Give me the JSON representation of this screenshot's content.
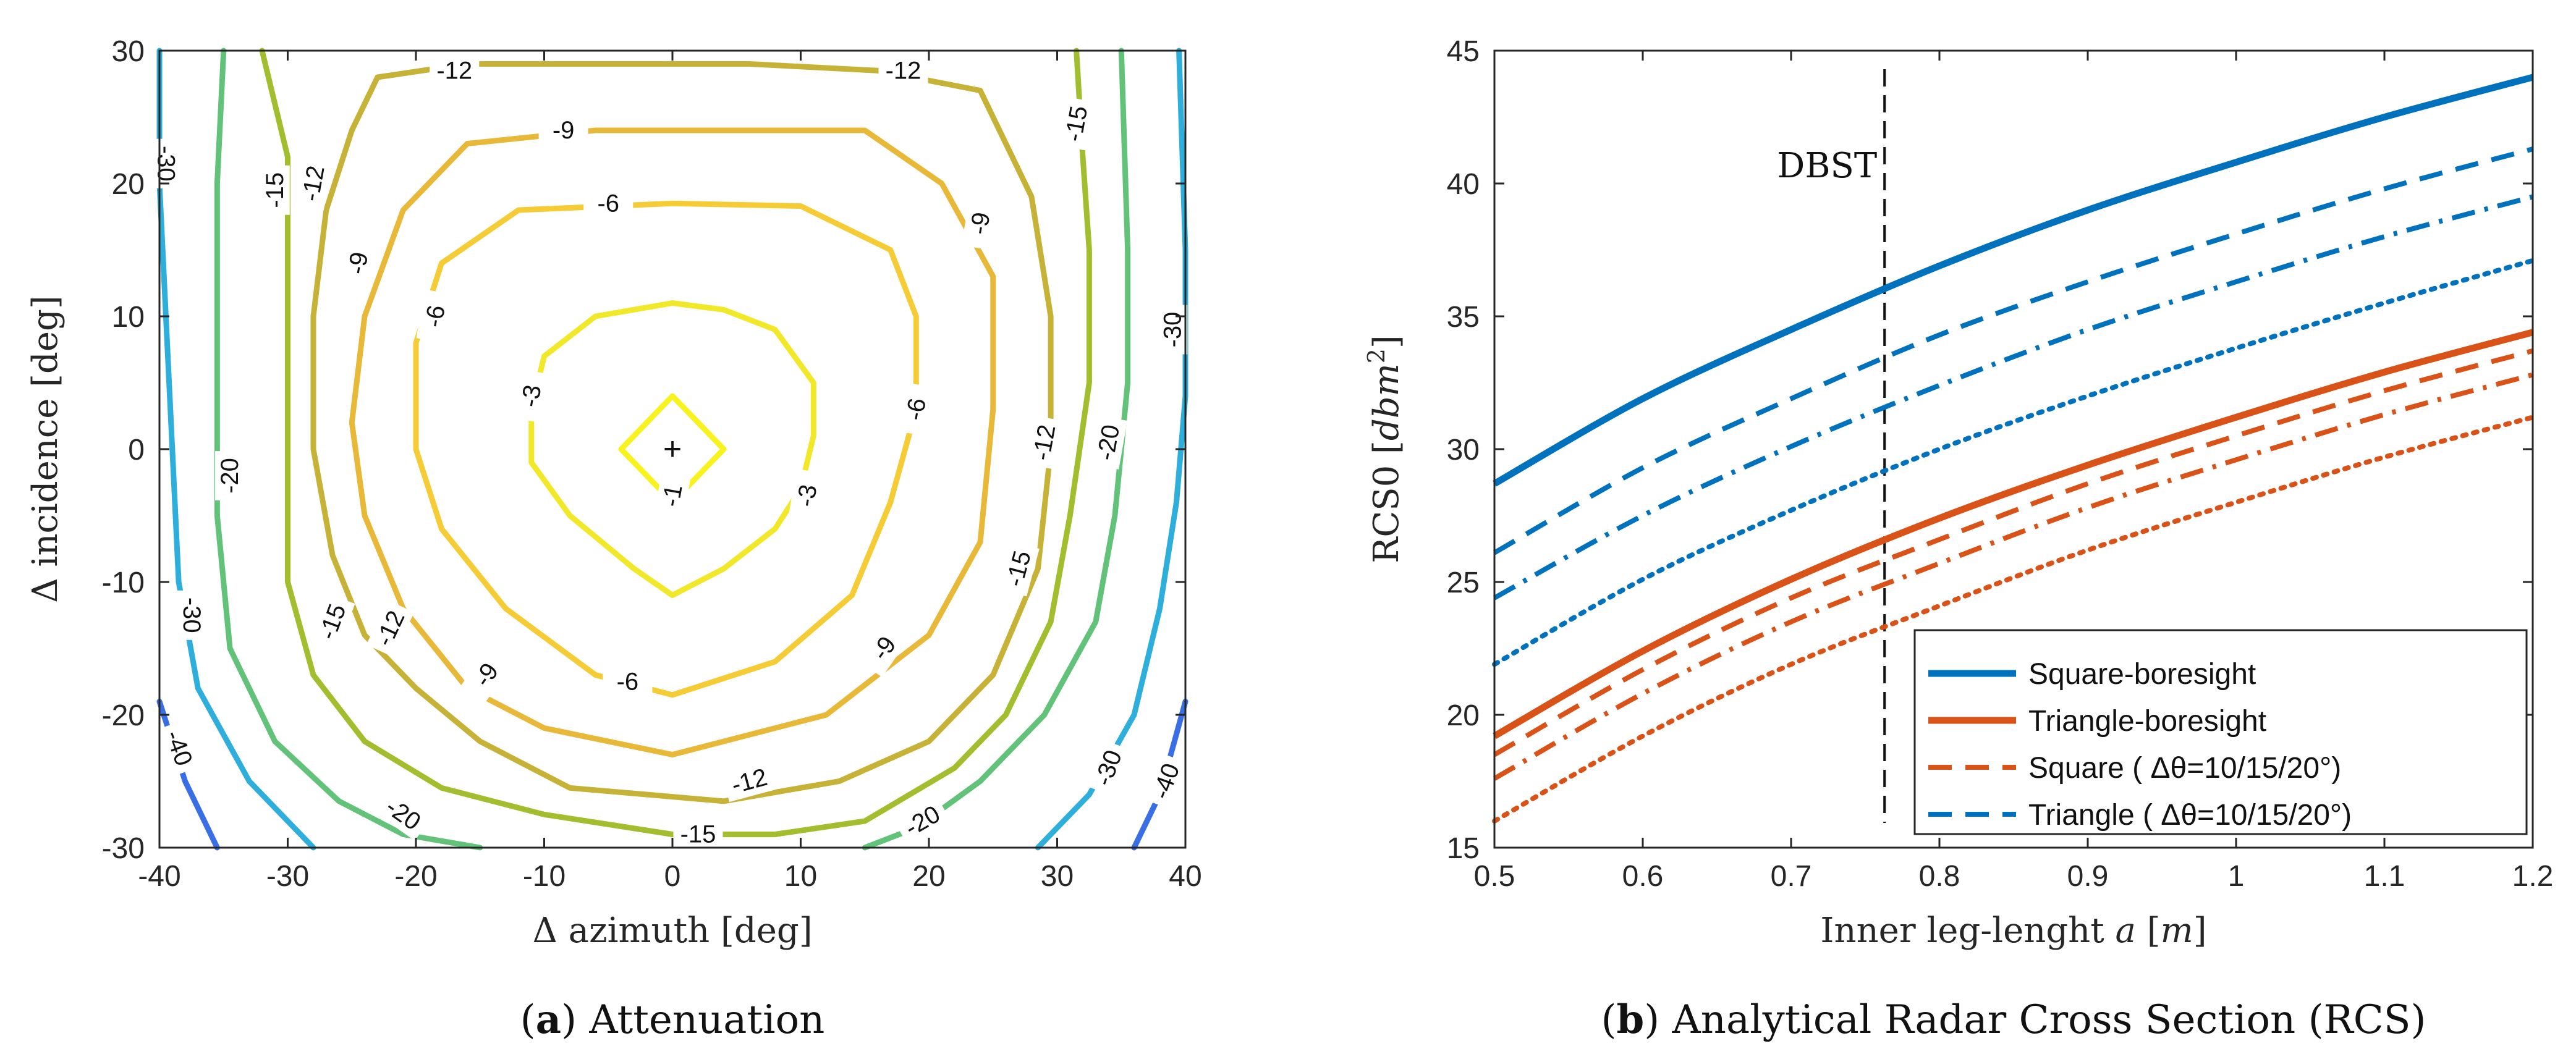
{
  "chart_data": [
    {
      "type": "contour",
      "caption_letter": "a",
      "caption_text": " Attenuation",
      "xlabel": "Δ azimuth [deg]",
      "ylabel": "Δ incidence [deg]",
      "xlim": [
        -40,
        40
      ],
      "ylim": [
        -30,
        30
      ],
      "xticks": [
        -40,
        -30,
        -20,
        -10,
        0,
        10,
        20,
        30,
        40
      ],
      "yticks": [
        -30,
        -20,
        -10,
        0,
        10,
        20,
        30
      ],
      "center_marker": "+",
      "levels": [
        {
          "level": -1,
          "color": "#f8f21e",
          "points": [
            [
              -4,
              0
            ],
            [
              0,
              4
            ],
            [
              4,
              0
            ],
            [
              0,
              -4
            ],
            [
              -4,
              0
            ]
          ]
        },
        {
          "level": -3,
          "color": "#f2e82a",
          "points": [
            [
              0,
              11
            ],
            [
              -6,
              10
            ],
            [
              -10,
              7
            ],
            [
              -11,
              3
            ],
            [
              -11,
              -1
            ],
            [
              -8,
              -5
            ],
            [
              -3,
              -9
            ],
            [
              0,
              -11
            ],
            [
              4,
              -9
            ],
            [
              8,
              -6
            ],
            [
              10,
              -3
            ],
            [
              11,
              1
            ],
            [
              11,
              5
            ],
            [
              8,
              9
            ],
            [
              4,
              10.5
            ],
            [
              0,
              11
            ]
          ]
        },
        {
          "level": -6,
          "color": "#f5cc35",
          "points": [
            [
              0,
              18.5
            ],
            [
              -12,
              18
            ],
            [
              -18,
              14
            ],
            [
              -20,
              8
            ],
            [
              -20,
              0
            ],
            [
              -18,
              -6
            ],
            [
              -13,
              -12
            ],
            [
              -6,
              -17
            ],
            [
              0,
              -18.5
            ],
            [
              8,
              -16
            ],
            [
              14,
              -11
            ],
            [
              17,
              -4
            ],
            [
              19,
              3
            ],
            [
              19,
              10
            ],
            [
              17,
              15
            ],
            [
              10,
              18.3
            ],
            [
              0,
              18.5
            ]
          ]
        },
        {
          "level": -9,
          "color": "#e8b838",
          "points": [
            [
              -21,
              18
            ],
            [
              -16,
              23
            ],
            [
              -6,
              24
            ],
            [
              6,
              24
            ],
            [
              15,
              24
            ],
            [
              21,
              20
            ],
            [
              25,
              13
            ],
            [
              25,
              3
            ],
            [
              24,
              -7
            ],
            [
              20,
              -14
            ],
            [
              12,
              -20
            ],
            [
              0,
              -23
            ],
            [
              -10,
              -21
            ],
            [
              -16,
              -18
            ],
            [
              -21,
              -12
            ],
            [
              -24,
              -5
            ],
            [
              -25,
              2
            ],
            [
              -24,
              10
            ],
            [
              -21,
              18
            ]
          ]
        },
        {
          "level": -12,
          "color": "#c6b237",
          "points": [
            [
              -23,
              28
            ],
            [
              -16,
              29
            ],
            [
              -4,
              29
            ],
            [
              6,
              29
            ],
            [
              16,
              28.5
            ],
            [
              24,
              27
            ],
            [
              28,
              19
            ],
            [
              29.5,
              10
            ],
            [
              29.5,
              0
            ],
            [
              28.5,
              -9
            ],
            [
              25,
              -17
            ],
            [
              20,
              -22
            ],
            [
              13,
              -25
            ],
            [
              4,
              -26.5
            ],
            [
              -8,
              -25.5
            ],
            [
              -15,
              -22
            ],
            [
              -20,
              -18
            ],
            [
              -24,
              -14
            ],
            [
              -26.5,
              -8
            ],
            [
              -28,
              0
            ],
            [
              -28,
              10
            ],
            [
              -27,
              18
            ],
            [
              -25,
              24
            ],
            [
              -23,
              28
            ]
          ]
        },
        {
          "level": -15,
          "color": "#a2be2e",
          "points": [
            [
              -32,
              30
            ],
            [
              -30,
              22
            ],
            [
              -30,
              12
            ],
            [
              -30,
              0
            ],
            [
              -30,
              -10
            ],
            [
              -28,
              -17
            ],
            [
              -24,
              -22
            ],
            [
              -18,
              -25.5
            ],
            [
              -10,
              -27.5
            ],
            [
              0,
              -29
            ],
            [
              8,
              -29
            ],
            [
              15,
              -28
            ],
            [
              22,
              -24
            ],
            [
              26,
              -20
            ],
            [
              29.5,
              -13
            ],
            [
              31,
              -5
            ],
            [
              32.5,
              5
            ],
            [
              32.5,
              15
            ],
            [
              32,
              22
            ],
            [
              31.5,
              30
            ]
          ]
        },
        {
          "level": -20,
          "color": "#63c27a",
          "points": [
            [
              -35,
              30
            ],
            [
              -35.5,
              20
            ],
            [
              -35.5,
              8
            ],
            [
              -35.5,
              -5
            ],
            [
              -34.5,
              -15
            ],
            [
              -31,
              -22
            ],
            [
              -26,
              -26.5
            ],
            [
              -21,
              -29
            ],
            [
              -15,
              -30
            ]
          ]
        },
        {
          "level": -20,
          "color": "#63c27a",
          "points": [
            [
              15,
              -30
            ],
            [
              19,
              -28.5
            ],
            [
              24,
              -25
            ],
            [
              29,
              -20
            ],
            [
              33,
              -13
            ],
            [
              34.5,
              -5
            ],
            [
              35.5,
              5
            ],
            [
              35.5,
              15
            ],
            [
              35,
              30
            ]
          ]
        },
        {
          "level": -30,
          "color": "#2eaeda",
          "points": [
            [
              -40,
              30
            ],
            [
              -40,
              20
            ],
            [
              -39.5,
              10
            ],
            [
              -39,
              0
            ],
            [
              -38.5,
              -10
            ],
            [
              -37,
              -18
            ],
            [
              -33,
              -25
            ],
            [
              -28,
              -30
            ]
          ]
        },
        {
          "level": -30,
          "color": "#2eaeda",
          "points": [
            [
              28.5,
              -30
            ],
            [
              32.5,
              -26
            ],
            [
              36,
              -20
            ],
            [
              38,
              -12
            ],
            [
              39.3,
              -4
            ],
            [
              40,
              4
            ],
            [
              40,
              15
            ],
            [
              39.5,
              30
            ]
          ]
        },
        {
          "level": -40,
          "color": "#3a6ee4",
          "points": [
            [
              -40,
              -19
            ],
            [
              -38,
              -25
            ],
            [
              -35.5,
              -30
            ]
          ]
        },
        {
          "level": -40,
          "color": "#3a6ee4",
          "points": [
            [
              36,
              -30
            ],
            [
              38,
              -26
            ],
            [
              40,
              -19
            ]
          ]
        }
      ],
      "labels": [
        {
          "text": "-1",
          "x": 0,
          "y": -3.5,
          "rot": -80
        },
        {
          "text": "-3",
          "x": -11,
          "y": 4,
          "rot": -80
        },
        {
          "text": "-3",
          "x": 10.5,
          "y": -3.5,
          "rot": -80
        },
        {
          "text": "-6",
          "x": -5,
          "y": 18.5,
          "rot": 0
        },
        {
          "text": "-6",
          "x": -18.5,
          "y": 10,
          "rot": -80
        },
        {
          "text": "-6",
          "x": 19,
          "y": 3,
          "rot": -80
        },
        {
          "text": "-6",
          "x": -3.5,
          "y": -17.5,
          "rot": 0
        },
        {
          "text": "-9",
          "x": -8.5,
          "y": 24,
          "rot": 0
        },
        {
          "text": "-9",
          "x": 24,
          "y": 17,
          "rot": -80
        },
        {
          "text": "-9",
          "x": -24.5,
          "y": 14,
          "rot": -80
        },
        {
          "text": "-9",
          "x": 16.5,
          "y": -15,
          "rot": -55
        },
        {
          "text": "-9",
          "x": -14.5,
          "y": -17,
          "rot": -55
        },
        {
          "text": "-12",
          "x": -17,
          "y": 28.5,
          "rot": 0
        },
        {
          "text": "-12",
          "x": 18,
          "y": 28.5,
          "rot": 0
        },
        {
          "text": "-12",
          "x": -28,
          "y": 20,
          "rot": -80
        },
        {
          "text": "-12",
          "x": 29,
          "y": 0.5,
          "rot": -80
        },
        {
          "text": "-12",
          "x": -22,
          "y": -13.5,
          "rot": -65
        },
        {
          "text": "-12",
          "x": 6,
          "y": -25,
          "rot": -15
        },
        {
          "text": "-15",
          "x": 31.5,
          "y": 24.5,
          "rot": -80
        },
        {
          "text": "-15",
          "x": -31,
          "y": 19.5,
          "rot": -90
        },
        {
          "text": "-15",
          "x": 27,
          "y": -9,
          "rot": -75
        },
        {
          "text": "-15",
          "x": -26.5,
          "y": -13,
          "rot": -70
        },
        {
          "text": "-15",
          "x": 2,
          "y": -29,
          "rot": 0
        },
        {
          "text": "-20",
          "x": -34.5,
          "y": -2,
          "rot": -90
        },
        {
          "text": "-20",
          "x": 34,
          "y": 0.5,
          "rot": -80
        },
        {
          "text": "-20",
          "x": -21,
          "y": -27.5,
          "rot": 35
        },
        {
          "text": "-20",
          "x": 19.5,
          "y": -28,
          "rot": -30
        },
        {
          "text": "-30",
          "x": -39.5,
          "y": 21.5,
          "rot": 90
        },
        {
          "text": "-30",
          "x": 39,
          "y": 9,
          "rot": -90
        },
        {
          "text": "-30",
          "x": -37.5,
          "y": -12.5,
          "rot": 90
        },
        {
          "text": "-30",
          "x": 34,
          "y": -24,
          "rot": -70
        },
        {
          "text": "-40",
          "x": -38.5,
          "y": -22.5,
          "rot": 70
        },
        {
          "text": "-40",
          "x": 38.5,
          "y": -25,
          "rot": -70
        }
      ]
    },
    {
      "type": "line",
      "caption_letter": "b",
      "caption_text": " Analytical Radar Cross Section (RCS)",
      "xlabel_main": "Inner leg-lenght ",
      "xlabel_var": "a",
      "xlabel_unit_open": " [",
      "xlabel_unit": "m",
      "xlabel_unit_close": "]",
      "ylabel_main": "RCS0 [",
      "ylabel_unit": "dbm",
      "ylabel_exp": "2",
      "ylabel_close": "]",
      "xlim": [
        0.5,
        1.2
      ],
      "ylim": [
        15,
        45
      ],
      "xticks": [
        0.5,
        0.6,
        0.7,
        0.8,
        0.9,
        1,
        1.1,
        1.2
      ],
      "yticks": [
        15,
        20,
        25,
        30,
        35,
        40,
        45
      ],
      "vline": {
        "x": 0.763,
        "label": "DBST"
      },
      "x": [
        0.5,
        0.6,
        0.7,
        0.8,
        0.9,
        1.0,
        1.1,
        1.2
      ],
      "series": [
        {
          "name": "Square-boresight",
          "color": "#0072bd",
          "style": "solid",
          "values": [
            28.7,
            31.9,
            34.5,
            36.9,
            39.0,
            40.8,
            42.5,
            44.0
          ]
        },
        {
          "name": "",
          "color": "#0072bd",
          "style": "dashed",
          "values": [
            26.1,
            29.3,
            31.9,
            34.3,
            36.3,
            38.1,
            39.8,
            41.3
          ]
        },
        {
          "name": "",
          "color": "#0072bd",
          "style": "dashdot",
          "values": [
            24.4,
            27.5,
            30.1,
            32.4,
            34.5,
            36.3,
            38.0,
            39.5
          ]
        },
        {
          "name": "",
          "color": "#0072bd",
          "style": "dotted",
          "values": [
            21.9,
            25.1,
            27.7,
            30.0,
            32.0,
            33.8,
            35.5,
            37.1
          ]
        },
        {
          "name": "Triangle-boresight",
          "color": "#d95319",
          "style": "solid",
          "values": [
            19.2,
            22.4,
            25.1,
            27.4,
            29.4,
            31.2,
            32.9,
            34.4
          ]
        },
        {
          "name": "",
          "color": "#d95319",
          "style": "dashed",
          "values": [
            18.5,
            21.7,
            24.4,
            26.6,
            28.7,
            30.5,
            32.2,
            33.7
          ]
        },
        {
          "name": "",
          "color": "#d95319",
          "style": "dashdot",
          "values": [
            17.6,
            20.8,
            23.5,
            25.7,
            27.8,
            29.6,
            31.3,
            32.8
          ]
        },
        {
          "name": "",
          "color": "#d95319",
          "style": "dotted",
          "values": [
            16.0,
            19.2,
            21.9,
            24.1,
            26.2,
            28.0,
            29.7,
            31.2
          ]
        }
      ],
      "legend": [
        {
          "label": "Square-boresight",
          "color": "#0072bd",
          "style": "solid"
        },
        {
          "label": "Triangle-boresight",
          "color": "#d95319",
          "style": "solid"
        },
        {
          "label": "Square (  Δθ=10/15/20°)",
          "color": "#d95319",
          "style": "dashed"
        },
        {
          "label": "Triangle (  Δθ=10/15/20°)",
          "color": "#0072bd",
          "style": "dashed"
        }
      ],
      "legend_position": "bottom-right"
    }
  ]
}
